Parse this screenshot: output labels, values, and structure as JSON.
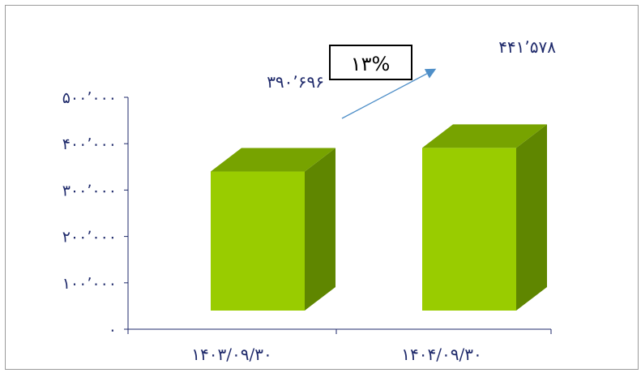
{
  "chart_data": {
    "type": "bar",
    "style": "3d-column",
    "categories": [
      "۱۴۰۳/۰۹/۳۰",
      "۱۴۰۴/۰۹/۳۰"
    ],
    "values": [
      390696,
      441578
    ],
    "value_labels": [
      "۳۹۰٬۶۹۶",
      "۴۴۱٬۵۷۸"
    ],
    "ylim": [
      0,
      500000
    ],
    "yticks": [
      0,
      100000,
      200000,
      300000,
      400000,
      500000
    ],
    "ytick_labels": [
      "۰",
      "۱۰۰٬۰۰۰",
      "۲۰۰٬۰۰۰",
      "۳۰۰٬۰۰۰",
      "۴۰۰٬۰۰۰",
      "۵۰۰٬۰۰۰"
    ],
    "grid": false,
    "annotation": {
      "text": "۱۳%",
      "arrow": "from first bar toward second bar"
    },
    "colors": {
      "bar_front": "#99cc00",
      "bar_side": "#5f8600",
      "bar_top": "#77a300",
      "axis": "#1f2a6b",
      "arrow": "#4f8fc8"
    }
  }
}
